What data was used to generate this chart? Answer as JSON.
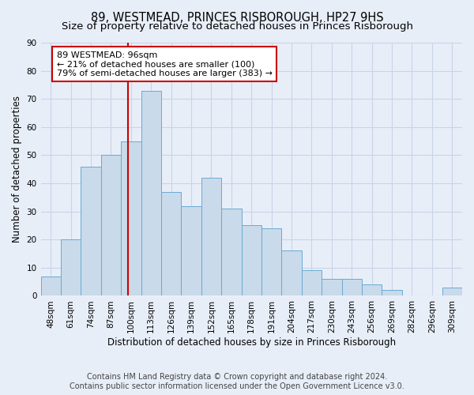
{
  "title": "89, WESTMEAD, PRINCES RISBOROUGH, HP27 9HS",
  "subtitle": "Size of property relative to detached houses in Princes Risborough",
  "xlabel": "Distribution of detached houses by size in Princes Risborough",
  "ylabel": "Number of detached properties",
  "footer_line1": "Contains HM Land Registry data © Crown copyright and database right 2024.",
  "footer_line2": "Contains public sector information licensed under the Open Government Licence v3.0.",
  "categories": [
    "48sqm",
    "61sqm",
    "74sqm",
    "87sqm",
    "100sqm",
    "113sqm",
    "126sqm",
    "139sqm",
    "152sqm",
    "165sqm",
    "178sqm",
    "191sqm",
    "204sqm",
    "217sqm",
    "230sqm",
    "243sqm",
    "256sqm",
    "269sqm",
    "282sqm",
    "296sqm",
    "309sqm"
  ],
  "bar_values": [
    7,
    20,
    46,
    50,
    55,
    73,
    37,
    32,
    42,
    31,
    25,
    24,
    16,
    9,
    6,
    6,
    4,
    2,
    0,
    0,
    3
  ],
  "bar_color": "#c9daea",
  "bar_edge_color": "#6aaad4",
  "vline_x": 3.85,
  "vline_color": "#cc0000",
  "annotation_text": "89 WESTMEAD: 96sqm\n← 21% of detached houses are smaller (100)\n79% of semi-detached houses are larger (383) →",
  "annotation_box_color": "white",
  "annotation_box_edge_color": "#cc0000",
  "ylim": [
    0,
    90
  ],
  "yticks": [
    0,
    10,
    20,
    30,
    40,
    50,
    60,
    70,
    80,
    90
  ],
  "grid_color": "#c8d4e8",
  "background_color": "#e8eef8",
  "title_fontsize": 10.5,
  "subtitle_fontsize": 9.5,
  "axis_label_fontsize": 8.5,
  "tick_fontsize": 7.5,
  "annotation_fontsize": 8,
  "footer_fontsize": 7
}
